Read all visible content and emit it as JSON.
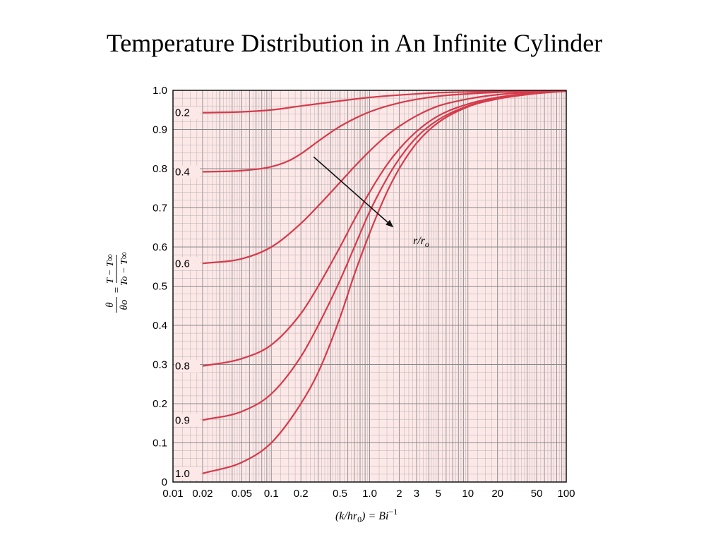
{
  "slide": {
    "title": "Temperature Distribution in An Infinite Cylinder"
  },
  "chart_data": {
    "type": "line",
    "title": "Temperature Distribution in An Infinite Cylinder",
    "xlabel": "(k/hr0) = Bi^-1",
    "ylabel": "θ/θo = (T − T∞)/(To − T∞)",
    "x_scale": "log",
    "xlim": [
      0.01,
      100
    ],
    "ylim": [
      0,
      1.0
    ],
    "grid": true,
    "colors": {
      "background": "#fde8e8",
      "curve": "#d63a4a",
      "grid_major": "#8a8a8a",
      "grid_minor": "#b8b0b0"
    },
    "x_tick_labels": [
      "0.01",
      "0.02",
      "0.05",
      "0.1",
      "0.2",
      "0.5",
      "1.0",
      "2",
      "3",
      "5",
      "10",
      "20",
      "50",
      "100"
    ],
    "x_ticks": [
      0.01,
      0.02,
      0.05,
      0.1,
      0.2,
      0.5,
      1.0,
      2,
      3,
      5,
      10,
      20,
      50,
      100
    ],
    "y_tick_labels": [
      "0",
      "0.1",
      "0.2",
      "0.3",
      "0.4",
      "0.5",
      "0.6",
      "0.7",
      "0.8",
      "0.9",
      "1.0"
    ],
    "y_ticks": [
      0,
      0.1,
      0.2,
      0.3,
      0.4,
      0.5,
      0.6,
      0.7,
      0.8,
      0.9,
      1.0
    ],
    "axis_label_text": {
      "x_lhs": "(k/hr",
      "x_sub": "0",
      "x_rhs": ") = Bi",
      "x_sup": "−1",
      "y_theta": "θ",
      "y_theta_o": "θo",
      "y_num": "T − T∞",
      "y_den": "To − T∞",
      "y_eq": "="
    },
    "annotation": {
      "text_r": "r",
      "text_ro": "/r",
      "text_o": "o",
      "from": [
        0.27,
        0.83
      ],
      "to": [
        1.75,
        0.65
      ]
    },
    "series": [
      {
        "name": "0.2",
        "x": [
          0.02,
          0.05,
          0.1,
          0.2,
          0.5,
          1.0,
          2,
          5,
          10,
          20,
          50,
          100
        ],
        "y": [
          0.943,
          0.945,
          0.95,
          0.96,
          0.973,
          0.982,
          0.988,
          0.994,
          0.996,
          0.997,
          0.998,
          0.999
        ]
      },
      {
        "name": "0.4",
        "x": [
          0.02,
          0.05,
          0.1,
          0.15,
          0.2,
          0.3,
          0.5,
          1.0,
          2,
          5,
          10,
          20,
          50,
          100
        ],
        "y": [
          0.792,
          0.795,
          0.805,
          0.82,
          0.838,
          0.87,
          0.908,
          0.945,
          0.968,
          0.985,
          0.991,
          0.995,
          0.998,
          0.999
        ]
      },
      {
        "name": "0.6",
        "x": [
          0.02,
          0.05,
          0.1,
          0.2,
          0.3,
          0.5,
          0.7,
          1.0,
          1.5,
          2,
          3,
          5,
          10,
          20,
          50,
          100
        ],
        "y": [
          0.558,
          0.57,
          0.6,
          0.66,
          0.705,
          0.765,
          0.805,
          0.845,
          0.885,
          0.908,
          0.935,
          0.96,
          0.978,
          0.989,
          0.996,
          0.998
        ]
      },
      {
        "name": "0.8",
        "x": [
          0.02,
          0.05,
          0.1,
          0.2,
          0.3,
          0.5,
          0.7,
          1.0,
          1.5,
          2,
          3,
          5,
          10,
          20,
          50,
          100
        ],
        "y": [
          0.296,
          0.315,
          0.35,
          0.43,
          0.5,
          0.6,
          0.67,
          0.74,
          0.81,
          0.85,
          0.895,
          0.935,
          0.965,
          0.982,
          0.994,
          0.998
        ]
      },
      {
        "name": "0.9",
        "x": [
          0.02,
          0.05,
          0.1,
          0.2,
          0.3,
          0.5,
          0.7,
          1.0,
          1.5,
          2,
          3,
          5,
          10,
          20,
          50,
          100
        ],
        "y": [
          0.158,
          0.18,
          0.225,
          0.32,
          0.4,
          0.515,
          0.6,
          0.69,
          0.775,
          0.825,
          0.88,
          0.925,
          0.96,
          0.98,
          0.993,
          0.998
        ]
      },
      {
        "name": "1.0",
        "x": [
          0.02,
          0.05,
          0.1,
          0.2,
          0.3,
          0.5,
          0.7,
          1.0,
          1.5,
          2,
          3,
          5,
          10,
          20,
          50,
          100
        ],
        "y": [
          0.022,
          0.05,
          0.1,
          0.2,
          0.28,
          0.42,
          0.53,
          0.635,
          0.74,
          0.8,
          0.865,
          0.918,
          0.958,
          0.978,
          0.992,
          0.998
        ]
      }
    ]
  }
}
